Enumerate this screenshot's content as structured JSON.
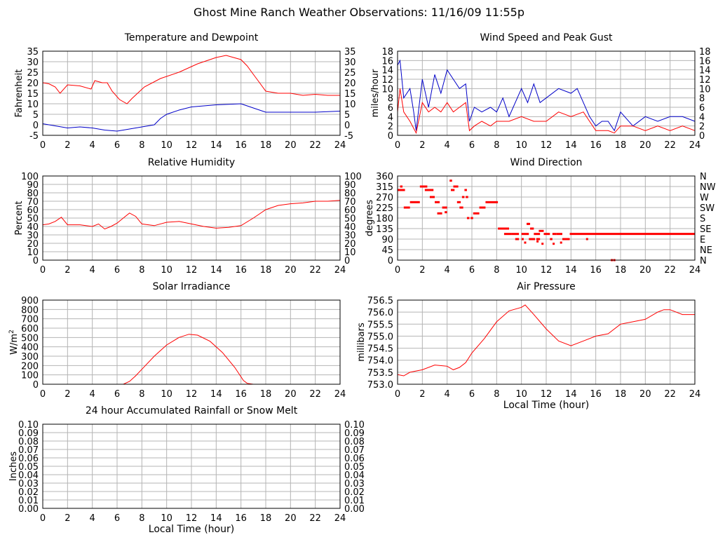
{
  "page_title": "Ghost Mine Ranch Weather Observations: 11/16/09 11:55p",
  "colors": {
    "red": "#ff0000",
    "blue": "#0000c8",
    "grid": "#b4b4b4",
    "frame": "#000000"
  },
  "chart_data": [
    {
      "id": "temp",
      "type": "line",
      "title": "Temperature and Dewpoint",
      "ylabel": "Fahrenheit",
      "xlabel": "",
      "xlim": [
        0,
        24
      ],
      "ylim": [
        -5,
        35
      ],
      "xticks": [
        0,
        2,
        4,
        6,
        8,
        10,
        12,
        14,
        16,
        18,
        20,
        22,
        24
      ],
      "yticks": [
        "-5",
        "0",
        "5",
        "10",
        "15",
        "20",
        "25",
        "30",
        "35"
      ],
      "right_axis": true,
      "grid": true,
      "series": [
        {
          "color": "red",
          "x": [
            0,
            0.5,
            1,
            1.4,
            2,
            3,
            3.9,
            4.2,
            4.8,
            5.2,
            5.6,
            6.2,
            6.8,
            7.2,
            8.2,
            9.5,
            11,
            12.5,
            14,
            14.8,
            16,
            16.5,
            17,
            17.5,
            18,
            19,
            20,
            21,
            22,
            23,
            24
          ],
          "y": [
            20,
            19.5,
            18,
            15,
            19,
            18.5,
            17,
            21,
            20,
            20,
            16,
            12,
            10,
            12.5,
            18,
            22,
            25,
            29,
            32,
            33,
            31,
            28,
            24,
            20,
            16,
            15,
            15,
            14,
            14.5,
            14,
            14
          ]
        },
        {
          "color": "blue",
          "x": [
            0,
            1,
            2,
            3,
            4,
            5,
            6,
            7,
            8,
            9,
            9.5,
            10,
            11,
            12,
            14,
            16,
            16.5,
            17,
            18,
            20,
            22,
            24
          ],
          "y": [
            0.5,
            -0.5,
            -1.5,
            -1,
            -1.5,
            -2.5,
            -3,
            -2,
            -1,
            0,
            3,
            5,
            7,
            8.5,
            9.5,
            10,
            9,
            8,
            6,
            6,
            6,
            6.5
          ]
        }
      ]
    },
    {
      "id": "wind",
      "type": "line",
      "title": "Wind Speed and Peak Gust",
      "ylabel": "miles/hour",
      "xlabel": "",
      "xlim": [
        0,
        24
      ],
      "ylim": [
        0,
        18
      ],
      "xticks": [
        0,
        2,
        4,
        6,
        8,
        10,
        12,
        14,
        16,
        18,
        20,
        22,
        24
      ],
      "yticks": [
        "0",
        "2",
        "4",
        "6",
        "8",
        "10",
        "12",
        "14",
        "16",
        "18"
      ],
      "right_axis": true,
      "grid": true,
      "series": [
        {
          "color": "blue",
          "x": [
            0,
            0.2,
            0.5,
            1,
            1.3,
            1.5,
            2,
            2.5,
            3,
            3.5,
            4,
            4.5,
            5,
            5.5,
            5.8,
            6.2,
            6.8,
            7.5,
            8,
            8.5,
            9,
            10,
            10.5,
            11,
            11.5,
            12,
            13,
            14,
            14.5,
            15,
            15.5,
            16,
            16.5,
            17,
            17.5,
            18,
            19,
            20,
            21,
            22,
            23,
            24
          ],
          "y": [
            15,
            16,
            8,
            10,
            5,
            1,
            12,
            6,
            13,
            9,
            14,
            12,
            10,
            11,
            3,
            6,
            5,
            6,
            5,
            8,
            4,
            10,
            7,
            11,
            7,
            8,
            10,
            9,
            10,
            7,
            4,
            2,
            3,
            3,
            1,
            5,
            2,
            4,
            3,
            4,
            4,
            3
          ]
        },
        {
          "color": "red",
          "x": [
            0,
            0.2,
            0.5,
            1,
            1.5,
            2,
            2.5,
            3,
            3.5,
            4,
            4.5,
            5,
            5.5,
            5.8,
            6.2,
            6.8,
            7.5,
            8,
            9,
            10,
            11,
            12,
            13,
            14,
            15,
            15.5,
            16,
            17,
            17.5,
            18,
            19,
            20,
            21,
            22,
            23,
            24
          ],
          "y": [
            5,
            10,
            5,
            3,
            0.5,
            7,
            5,
            6,
            5,
            7,
            5,
            6,
            7,
            1,
            2,
            3,
            2,
            3,
            3,
            4,
            3,
            3,
            5,
            4,
            5,
            3,
            1,
            1,
            0.5,
            2,
            2,
            1,
            2,
            1,
            2,
            1
          ]
        }
      ]
    },
    {
      "id": "humidity",
      "type": "line",
      "title": "Relative Humidity",
      "ylabel": "Percent",
      "xlabel": "",
      "xlim": [
        0,
        24
      ],
      "ylim": [
        0,
        100
      ],
      "xticks": [
        0,
        2,
        4,
        6,
        8,
        10,
        12,
        14,
        16,
        18,
        20,
        22,
        24
      ],
      "yticks": [
        "0",
        "10",
        "20",
        "30",
        "40",
        "50",
        "60",
        "70",
        "80",
        "90",
        "100"
      ],
      "right_axis": true,
      "grid": true,
      "series": [
        {
          "color": "red",
          "x": [
            0,
            0.5,
            1,
            1.5,
            2,
            3,
            4,
            4.5,
            5,
            5.5,
            6,
            6.5,
            7,
            7.5,
            8,
            9,
            10,
            11,
            12,
            13,
            14,
            15,
            16,
            17,
            17.5,
            18,
            19,
            20,
            21,
            22,
            23,
            24
          ],
          "y": [
            42,
            43,
            46,
            51,
            42,
            42,
            40,
            43,
            37,
            40,
            44,
            50,
            56,
            52,
            43,
            41,
            45,
            46,
            43,
            40,
            38,
            39,
            41,
            50,
            55,
            60,
            65,
            67,
            68,
            70,
            70,
            71
          ]
        }
      ]
    },
    {
      "id": "winddir",
      "type": "scatter",
      "title": "Wind Direction",
      "ylabel": "degrees",
      "xlabel": "",
      "xlim": [
        0,
        24
      ],
      "ylim": [
        0,
        360
      ],
      "xticks": [
        0,
        2,
        4,
        6,
        8,
        10,
        12,
        14,
        16,
        18,
        20,
        22,
        24
      ],
      "yticks": [
        "0",
        "45",
        "90",
        "135",
        "180",
        "225",
        "270",
        "315",
        "360"
      ],
      "right_labels": [
        "N",
        "NE",
        "E",
        "SE",
        "S",
        "SW",
        "W",
        "NW",
        "N"
      ],
      "grid": true,
      "series": [
        {
          "color": "red",
          "segments": [
            [
              0.0,
              0.6,
              300
            ],
            [
              0.2,
              0.4,
              315
            ],
            [
              0.5,
              1.0,
              225
            ],
            [
              1.0,
              1.8,
              248
            ],
            [
              1.8,
              2.4,
              315
            ],
            [
              2.2,
              2.9,
              300
            ],
            [
              2.6,
              3.0,
              270
            ],
            [
              3.0,
              3.4,
              248
            ],
            [
              3.2,
              3.6,
              200
            ],
            [
              3.6,
              4.0,
              225
            ],
            [
              3.8,
              4.0,
              205
            ],
            [
              4.2,
              4.4,
              340
            ],
            [
              4.3,
              4.6,
              300
            ],
            [
              4.5,
              4.9,
              315
            ],
            [
              4.8,
              5.1,
              248
            ],
            [
              5.0,
              5.3,
              225
            ],
            [
              5.2,
              5.4,
              270
            ],
            [
              5.4,
              5.6,
              300
            ],
            [
              5.5,
              5.7,
              270
            ],
            [
              5.6,
              5.8,
              180
            ],
            [
              5.9,
              6.1,
              180
            ],
            [
              6.1,
              6.6,
              200
            ],
            [
              6.6,
              7.1,
              225
            ],
            [
              7.1,
              8.1,
              248
            ],
            [
              8.1,
              9.0,
              135
            ],
            [
              8.6,
              9.2,
              112
            ],
            [
              9.2,
              9.8,
              112
            ],
            [
              9.5,
              9.8,
              90
            ],
            [
              10.0,
              10.6,
              112
            ],
            [
              10.5,
              10.7,
              155
            ],
            [
              10.7,
              11.0,
              135
            ],
            [
              10.6,
              11.1,
              90
            ],
            [
              11.0,
              11.5,
              112
            ],
            [
              11.2,
              11.5,
              90
            ],
            [
              11.4,
              11.8,
              125
            ],
            [
              11.8,
              12.3,
              112
            ],
            [
              12.3,
              12.5,
              90
            ],
            [
              12.5,
              12.8,
              112
            ],
            [
              12.8,
              13.3,
              112
            ],
            [
              13.3,
              13.9,
              90
            ],
            [
              13.9,
              24.0,
              112
            ]
          ],
          "points": [
            [
              10.1,
              90
            ],
            [
              10.3,
              75
            ],
            [
              10.5,
              155
            ],
            [
              11.3,
              80
            ],
            [
              11.7,
              70
            ],
            [
              12.6,
              70
            ],
            [
              13.2,
              75
            ],
            [
              15.3,
              90
            ],
            [
              17.3,
              0
            ],
            [
              17.5,
              0
            ]
          ]
        }
      ]
    },
    {
      "id": "solar",
      "type": "line",
      "title": "Solar Irradiance",
      "ylabel": "W/m",
      "ylabel_sup": "2",
      "xlabel": "",
      "xlim": [
        0,
        24
      ],
      "ylim": [
        0,
        900
      ],
      "xticks": [
        0,
        2,
        4,
        6,
        8,
        10,
        12,
        14,
        16,
        18,
        20,
        22,
        24
      ],
      "yticks": [
        "0",
        "100",
        "200",
        "300",
        "400",
        "500",
        "600",
        "700",
        "800",
        "900"
      ],
      "right_axis": false,
      "grid": true,
      "series": [
        {
          "color": "red",
          "x": [
            0,
            6.5,
            7,
            7.5,
            8,
            9,
            10,
            11,
            11.8,
            12.5,
            13.5,
            14.5,
            15.5,
            16.2,
            16.5,
            17,
            24
          ],
          "y": [
            0,
            0,
            30,
            90,
            160,
            300,
            420,
            500,
            535,
            525,
            460,
            340,
            180,
            40,
            10,
            0,
            0
          ]
        }
      ]
    },
    {
      "id": "pressure",
      "type": "line",
      "title": "Air Pressure",
      "ylabel": "millibars",
      "xlabel": "Local Time (hour)",
      "xlim": [
        0,
        24
      ],
      "ylim": [
        753.0,
        756.5
      ],
      "xticks": [
        0,
        2,
        4,
        6,
        8,
        10,
        12,
        14,
        16,
        18,
        20,
        22,
        24
      ],
      "yticks": [
        "753.0",
        "753.5",
        "754.0",
        "754.5",
        "755.0",
        "755.5",
        "756.0",
        "756.5"
      ],
      "right_axis": false,
      "grid": true,
      "series": [
        {
          "color": "red",
          "x": [
            0,
            0.5,
            1,
            2,
            3,
            4,
            4.5,
            5,
            5.5,
            6,
            7,
            8,
            9,
            10,
            10.3,
            11,
            12,
            13,
            14,
            15,
            16,
            17,
            18,
            19,
            20,
            21,
            21.5,
            22,
            23,
            24
          ],
          "y": [
            753.4,
            753.35,
            753.5,
            753.6,
            753.8,
            753.75,
            753.6,
            753.7,
            753.9,
            754.3,
            754.9,
            755.6,
            756.05,
            756.2,
            756.3,
            755.9,
            755.3,
            754.8,
            754.6,
            754.8,
            755.0,
            755.1,
            755.5,
            755.6,
            755.7,
            756.0,
            756.1,
            756.1,
            755.9,
            755.9
          ]
        }
      ]
    },
    {
      "id": "rain",
      "type": "line",
      "title": "24 hour Accumulated Rainfall or Snow Melt",
      "ylabel": "Inches",
      "xlabel": "Local Time (hour)",
      "xlim": [
        0,
        24
      ],
      "ylim": [
        0,
        0.1
      ],
      "xticks": [
        0,
        2,
        4,
        6,
        8,
        10,
        12,
        14,
        16,
        18,
        20,
        22,
        24
      ],
      "yticks": [
        "0.00",
        "0.01",
        "0.02",
        "0.03",
        "0.04",
        "0.05",
        "0.06",
        "0.07",
        "0.08",
        "0.09",
        "0.10"
      ],
      "right_axis": true,
      "grid": true,
      "series": [
        {
          "color": "red",
          "x": [
            0,
            24
          ],
          "y": [
            0,
            0
          ]
        }
      ]
    }
  ]
}
